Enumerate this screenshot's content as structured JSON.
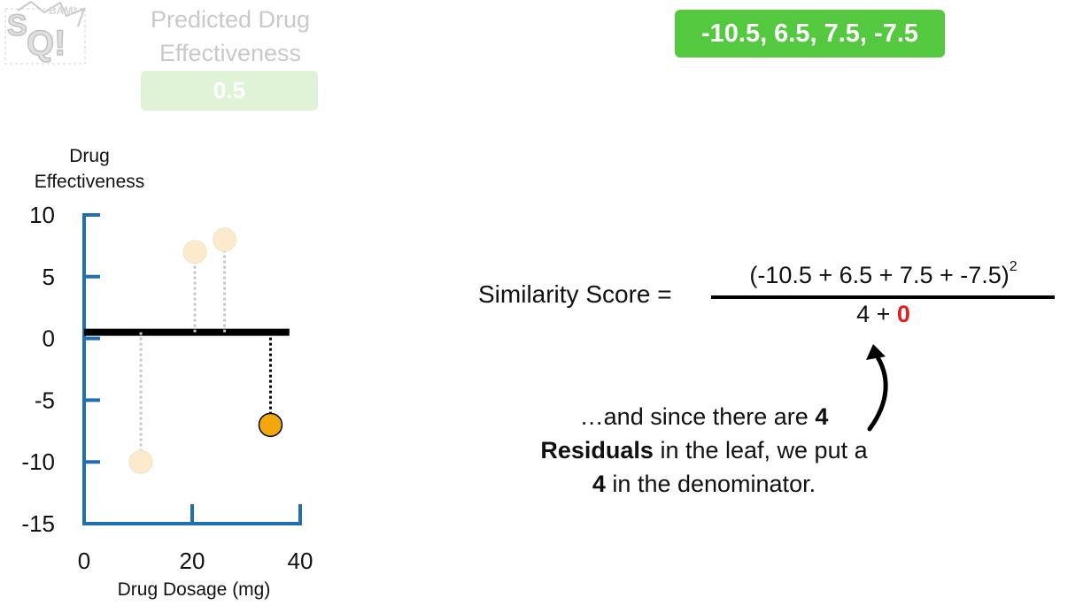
{
  "logo": {
    "text": "BAM! SQ!"
  },
  "prediction": {
    "title": "Predicted Drug Effectiveness",
    "value": "0.5"
  },
  "residuals_display": "-10.5, 6.5, 7.5, -7.5",
  "formula": {
    "label": "Similarity Score =",
    "numerator": "(-10.5 + 6.5 + 7.5 + -7.5)",
    "exponent": "2",
    "denominator_prefix": "4 + ",
    "denominator_lambda": "0"
  },
  "note": {
    "l1_text": "…and since there are ",
    "l1_bold": "4",
    "l2_bold": "Residuals",
    "l2_text": " in the leaf, we put a",
    "l3_bold": "4",
    "l3_text": " in the denominator."
  },
  "colors": {
    "axis": "#1f6fb2",
    "highlight_point": "#f2a80c",
    "faded_point": "#fbeacb",
    "residual_box": "#54c93f",
    "lambda": "#e02020"
  },
  "chart_data": {
    "type": "scatter",
    "ylabel": "Drug Effectiveness",
    "xlabel": "Drug Dosage (mg)",
    "xlim": [
      0,
      40
    ],
    "ylim": [
      -15,
      10
    ],
    "x_ticks": [
      0,
      20,
      40
    ],
    "y_ticks": [
      10,
      5,
      0,
      -5,
      -10,
      -15
    ],
    "prediction_line": 0.5,
    "prediction_line_x": [
      0,
      38
    ],
    "points": [
      {
        "x": 10.5,
        "y": -10,
        "highlight": false
      },
      {
        "x": 20.5,
        "y": 7,
        "highlight": false
      },
      {
        "x": 26,
        "y": 8,
        "highlight": false
      },
      {
        "x": 34.5,
        "y": -7,
        "highlight": true
      }
    ]
  }
}
